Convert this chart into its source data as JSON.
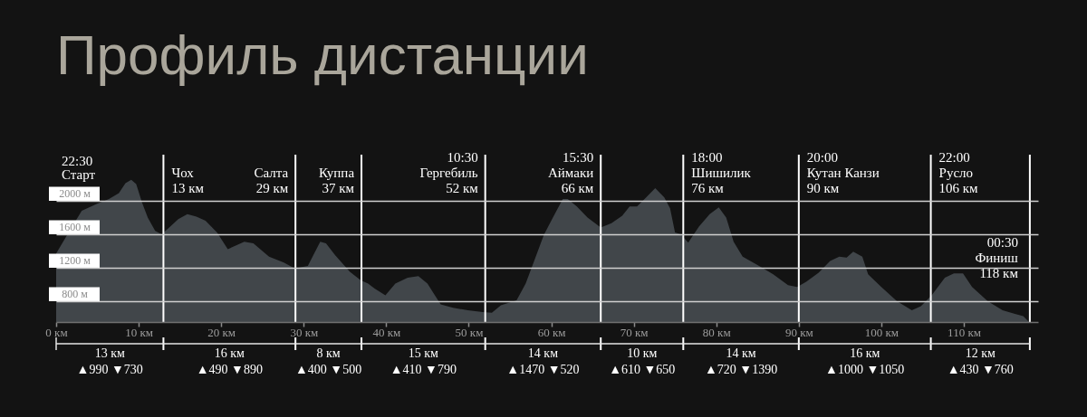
{
  "chart_data": {
    "type": "area",
    "title": "Профиль дистанции",
    "color": "#41464a",
    "x": [
      0,
      1.2,
      3.1,
      4.9,
      6.4,
      7.6,
      8.4,
      9.1,
      9.7,
      10.4,
      11.1,
      12.0,
      12.8,
      13.7,
      14.8,
      15.9,
      17.0,
      18.1,
      19.5,
      20.8,
      22.8,
      23.9,
      25.8,
      27.6,
      28.9,
      30.5,
      32.0,
      32.7,
      33.8,
      35.6,
      36.9,
      37.8,
      38.6,
      39.9,
      41.1,
      42.6,
      43.9,
      45.0,
      45.9,
      46.6,
      48.1,
      49.9,
      51.7,
      52.8,
      53.9,
      55.8,
      56.9,
      58.0,
      59.1,
      60.2,
      61.4,
      62.0,
      63.1,
      64.4,
      66.0,
      67.3,
      68.6,
      69.5,
      70.4,
      71.5,
      72.6,
      73.7,
      74.4,
      75.0,
      75.7,
      76.6,
      77.9,
      79.2,
      80.3,
      81.2,
      82.1,
      83.2,
      85.0,
      86.9,
      88.7,
      89.8,
      90.9,
      92.4,
      93.8,
      94.9,
      95.8,
      96.6,
      97.7,
      98.4,
      100.0,
      101.9,
      103.7,
      104.8,
      106.1,
      107.7,
      108.8,
      109.9,
      111.0,
      112.9,
      114.7,
      116.1,
      117.2,
      117.9
    ],
    "values": [
      1370,
      1570,
      1880,
      1960,
      2020,
      2090,
      2210,
      2250,
      2200,
      1980,
      1800,
      1640,
      1600,
      1680,
      1780,
      1840,
      1810,
      1760,
      1620,
      1420,
      1510,
      1490,
      1330,
      1260,
      1190,
      1220,
      1510,
      1490,
      1350,
      1150,
      1050,
      1010,
      950,
      870,
      1010,
      1080,
      1100,
      1010,
      870,
      760,
      720,
      690,
      670,
      660,
      750,
      810,
      1010,
      1300,
      1590,
      1800,
      2020,
      2020,
      1930,
      1800,
      1680,
      1730,
      1820,
      1930,
      1930,
      2040,
      2150,
      2040,
      1910,
      1620,
      1600,
      1500,
      1690,
      1840,
      1920,
      1800,
      1510,
      1330,
      1230,
      1120,
      990,
      970,
      1030,
      1140,
      1280,
      1330,
      1320,
      1390,
      1330,
      1120,
      970,
      800,
      690,
      740,
      870,
      1080,
      1130,
      1130,
      970,
      800,
      690,
      650,
      620,
      550
    ],
    "xlim": [
      0,
      119
    ],
    "xticks": [
      {
        "value": 0,
        "label": "0 км"
      },
      {
        "value": 10,
        "label": "10 км"
      },
      {
        "value": 20,
        "label": "20 км"
      },
      {
        "value": 30,
        "label": "30 км"
      },
      {
        "value": 40,
        "label": "40 км"
      },
      {
        "value": 50,
        "label": "50 км"
      },
      {
        "value": 60,
        "label": "60 км"
      },
      {
        "value": 70,
        "label": "70 км"
      },
      {
        "value": 80,
        "label": "80 км"
      },
      {
        "value": 90,
        "label": "90 км"
      },
      {
        "value": 100,
        "label": "100 км"
      },
      {
        "value": 110,
        "label": "110 км"
      }
    ],
    "ylim": [
      550,
      2550
    ],
    "yticks": [
      {
        "value": 800,
        "label": "800 м"
      },
      {
        "value": 1200,
        "label": "1200 м"
      },
      {
        "value": 1600,
        "label": "1600 м"
      },
      {
        "value": 2000,
        "label": "2000 м"
      }
    ],
    "grid": "y",
    "ref_lines": [
      {
        "axis": "x",
        "value": 13,
        "label": "Чох\n13 км"
      },
      {
        "axis": "x",
        "value": 29,
        "label": "Салта\n29 км"
      },
      {
        "axis": "x",
        "value": 37,
        "label": "Куппа\n37 км"
      },
      {
        "axis": "x",
        "value": 52,
        "label": "10:30\nГергебиль\n52 км"
      },
      {
        "axis": "x",
        "value": 66,
        "label": "15:30\nАймаки\n66 км"
      },
      {
        "axis": "x",
        "value": 76,
        "label": "18:00\nШишилик\n76 км"
      },
      {
        "axis": "x",
        "value": 90,
        "label": "20:00\nКутан Канзи\n90 км"
      },
      {
        "axis": "x",
        "value": 106,
        "label": "22:00\nРусло\n106 км"
      },
      {
        "axis": "x",
        "value": 118,
        "label": "00:30\nФиниш\n118 км"
      }
    ],
    "annotations": [
      "22:30\nСтарт",
      "13 км\n▲990 ▼730",
      "16 км\n▲490 ▼890",
      "8 км\n▲400 ▼500",
      "15 км\n▲410 ▼790",
      "14 км\n▲1470 ▼520",
      "10 км\n▲610 ▼650",
      "14 км\n▲720 ▼1390",
      "16 км\n▲1000 ▼1050",
      "12 км\n▲430 ▼760"
    ]
  }
}
